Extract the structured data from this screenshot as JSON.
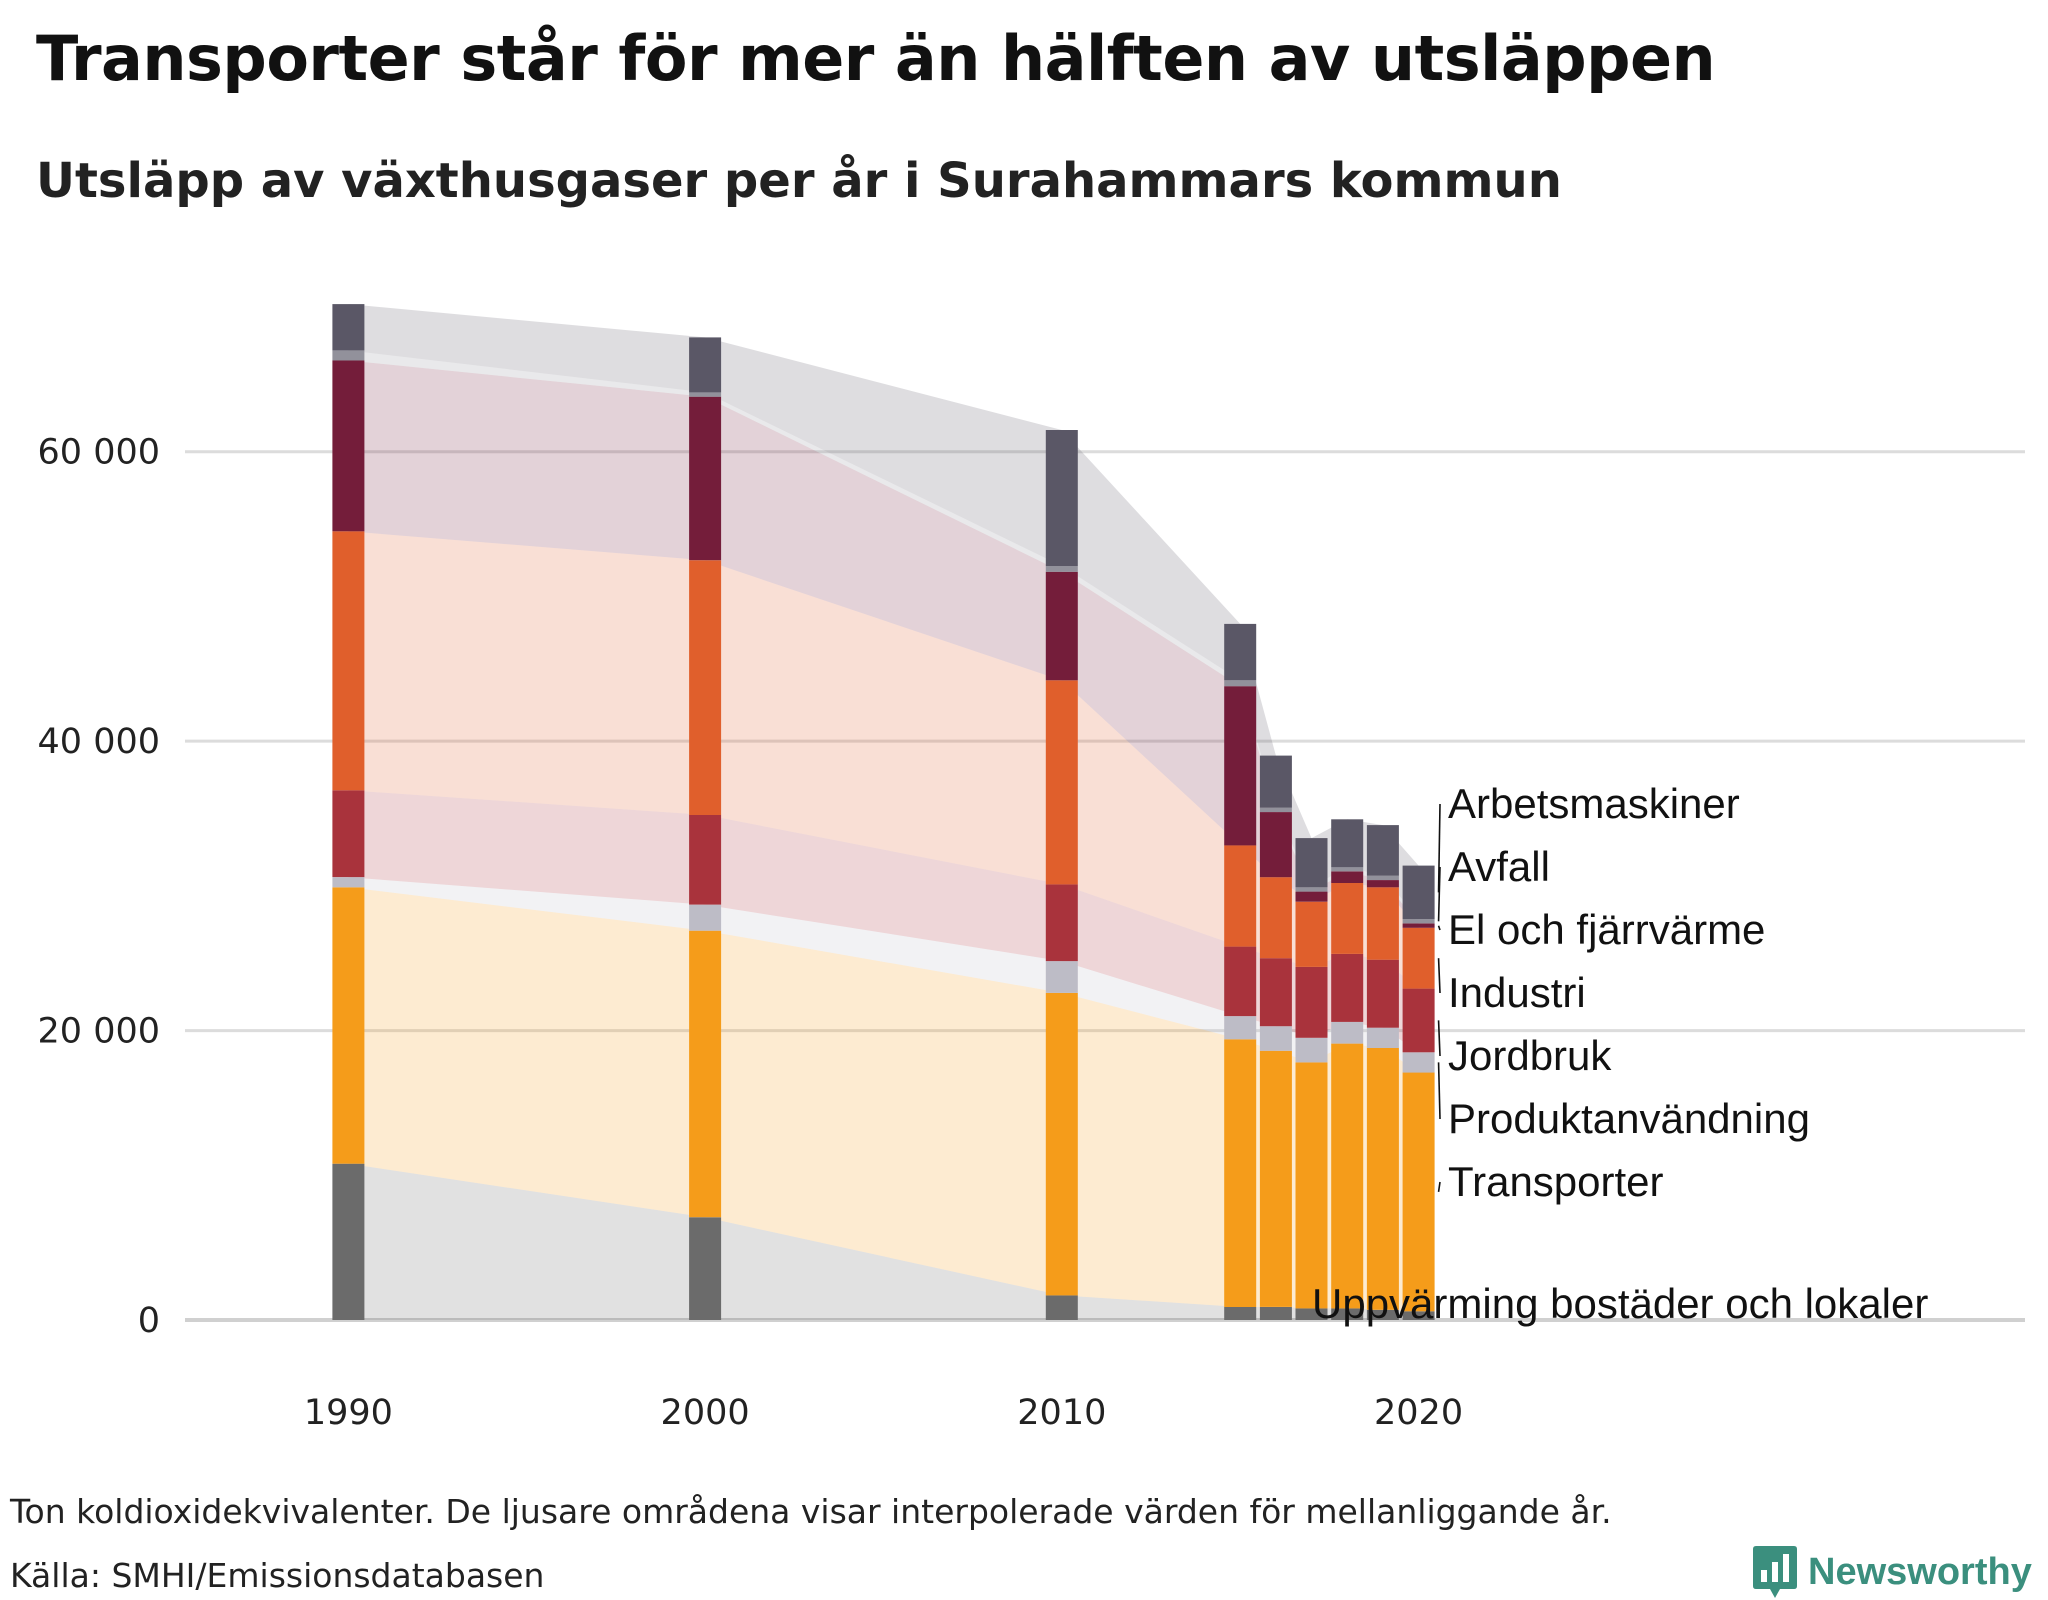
{
  "title": "Transporter står för mer än hälften av utsläppen",
  "subtitle": "Utsläpp av växthusgaser per år i Surahammars kommun",
  "note": "Ton koldioxidekvivalenter. De ljusare områdena visar interpolerade värden för mellanliggande år.",
  "source": "Källa: SMHI/Emissionsdatabasen",
  "brand": "Newsworthy",
  "colors": {
    "Uppvärming bostäder och lokaler": "#6b6b6b",
    "Transporter": "#f59c1a",
    "Produktanvändning": "#bdbcc6",
    "Jordbruk": "#a9333c",
    "Industri": "#e05f2c",
    "El och fjärrvärme": "#741d3a",
    "Avfall": "#92919b",
    "Arbetsmaskiner": "#5a5766",
    "brand": "#3b8f7e"
  },
  "chart_data": {
    "type": "bar",
    "stacked": true,
    "x": [
      1990,
      2000,
      2010,
      2015,
      2016,
      2017,
      2018,
      2019,
      2020
    ],
    "x_ticks": [
      "1990",
      "2000",
      "2010",
      "2020"
    ],
    "y_ticks": [
      "0",
      "20 000",
      "40 000",
      "60 000"
    ],
    "y_tick_values": [
      0,
      20000,
      40000,
      60000
    ],
    "ylim": [
      0,
      70000
    ],
    "xlim": [
      1985,
      2037
    ],
    "grid": true,
    "legend": "direct labels right of last bar",
    "interpolated_areas": true,
    "series": [
      {
        "name": "Uppvärming bostäder och lokaler",
        "values": [
          10800,
          7100,
          1700,
          900,
          900,
          800,
          800,
          700,
          600
        ]
      },
      {
        "name": "Transporter",
        "values": [
          19100,
          19800,
          20900,
          18500,
          17700,
          17000,
          18300,
          18100,
          16500
        ]
      },
      {
        "name": "Produktanvändning",
        "values": [
          700,
          1800,
          2200,
          1600,
          1700,
          1700,
          1500,
          1400,
          1400
        ]
      },
      {
        "name": "Jordbruk",
        "values": [
          6000,
          6200,
          5300,
          4800,
          4700,
          4900,
          4700,
          4700,
          4400
        ]
      },
      {
        "name": "Industri",
        "values": [
          17900,
          17600,
          14100,
          7000,
          5600,
          4500,
          4900,
          5000,
          4200
        ]
      },
      {
        "name": "El och fjärrvärme",
        "values": [
          11800,
          11300,
          7500,
          11000,
          4500,
          700,
          800,
          500,
          300
        ]
      },
      {
        "name": "Avfall",
        "values": [
          700,
          300,
          400,
          400,
          300,
          300,
          300,
          300,
          300
        ]
      },
      {
        "name": "Arbetsmaskiner",
        "values": [
          3200,
          3800,
          9400,
          3900,
          3600,
          3400,
          3300,
          3500,
          3700
        ]
      }
    ]
  }
}
